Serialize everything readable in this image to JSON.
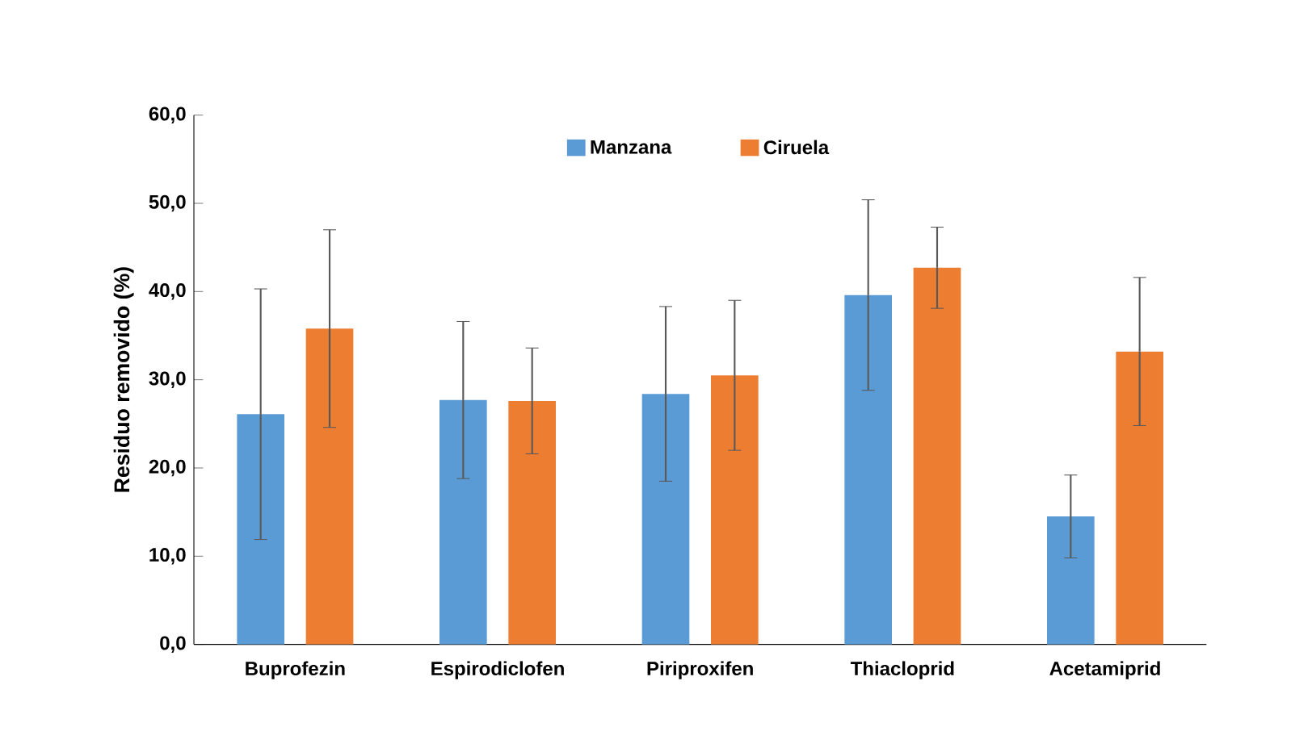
{
  "chart_data": {
    "type": "bar",
    "ylabel": "Residuo removido (%)",
    "categories": [
      "Buprofezin",
      "Espirodiclofen",
      "Piriproxifen",
      "Thiacloprid",
      "Acetamiprid"
    ],
    "series": [
      {
        "name": "Manzana",
        "color": "#5b9bd5",
        "values": [
          26.1,
          27.7,
          28.4,
          39.6,
          14.5
        ],
        "errors": [
          14.2,
          8.9,
          9.9,
          10.8,
          4.7
        ]
      },
      {
        "name": "Ciruela",
        "color": "#ed7d31",
        "values": [
          35.8,
          27.6,
          30.5,
          42.7,
          33.2
        ],
        "errors": [
          11.2,
          6.0,
          8.5,
          4.6,
          8.4
        ]
      }
    ],
    "ylim": [
      0,
      60
    ],
    "yticks": [
      {
        "value": 0,
        "label": "0,0"
      },
      {
        "value": 10,
        "label": "10,0"
      },
      {
        "value": 20,
        "label": "20,0"
      },
      {
        "value": 30,
        "label": "30,0"
      },
      {
        "value": 40,
        "label": "40,0"
      },
      {
        "value": 50,
        "label": "50,0"
      },
      {
        "value": 60,
        "label": "60,0"
      }
    ],
    "grid": false,
    "legend": "top"
  }
}
